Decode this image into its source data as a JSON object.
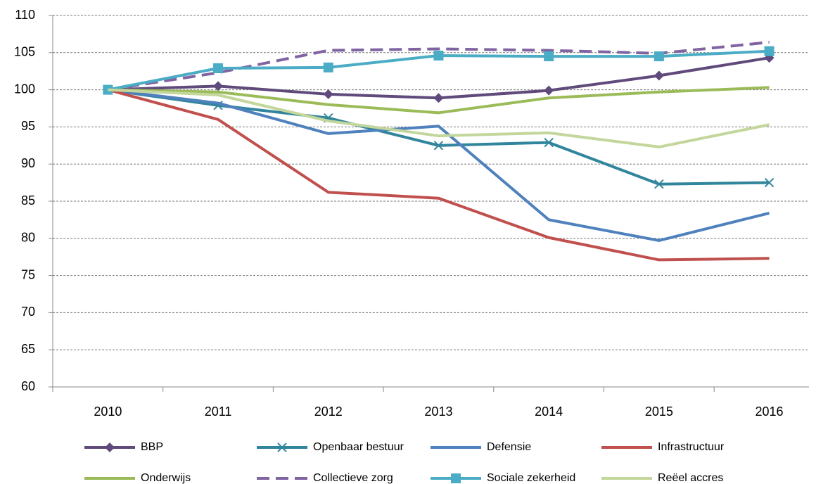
{
  "chart_data": {
    "type": "line",
    "categories": [
      "2010",
      "2011",
      "2012",
      "2013",
      "2014",
      "2015",
      "2016"
    ],
    "series": [
      {
        "name": "BBP",
        "color": "#604a7b",
        "marker": "diamond",
        "values": [
          100,
          100.5,
          99.4,
          98.9,
          99.9,
          101.9,
          104.3
        ]
      },
      {
        "name": "Openbaar bestuur",
        "color": "#31859c",
        "marker": "x",
        "values": [
          100,
          97.9,
          96.2,
          92.5,
          92.9,
          87.3,
          87.5
        ]
      },
      {
        "name": "Defensie",
        "color": "#4f81bd",
        "values": [
          100,
          98.2,
          94.1,
          95.1,
          82.5,
          79.7,
          83.4
        ]
      },
      {
        "name": "Infrastructuur",
        "color": "#c0504d",
        "values": [
          100,
          96.0,
          86.2,
          85.4,
          80.1,
          77.1,
          77.3
        ]
      },
      {
        "name": "Onderwijs",
        "color": "#9bbb59",
        "values": [
          100,
          99.7,
          98.0,
          96.9,
          98.9,
          99.7,
          100.3
        ]
      },
      {
        "name": "Collectieve zorg",
        "color": "#8064a2",
        "dash": true,
        "values": [
          100,
          102.3,
          105.3,
          105.5,
          105.3,
          104.9,
          106.4
        ]
      },
      {
        "name": "Sociale zekerheid",
        "color": "#4bacc6",
        "marker": "square",
        "values": [
          100,
          102.9,
          103.0,
          104.6,
          104.5,
          104.5,
          105.2
        ]
      },
      {
        "name": "Reëel accres",
        "color": "#c3d69b",
        "values": [
          100,
          99.3,
          95.8,
          93.8,
          94.2,
          92.3,
          95.3
        ]
      }
    ],
    "ylim": [
      60,
      110
    ],
    "yticks": [
      60,
      65,
      70,
      75,
      80,
      85,
      90,
      95,
      100,
      105,
      110
    ],
    "grid": true,
    "legend": "bottom"
  }
}
